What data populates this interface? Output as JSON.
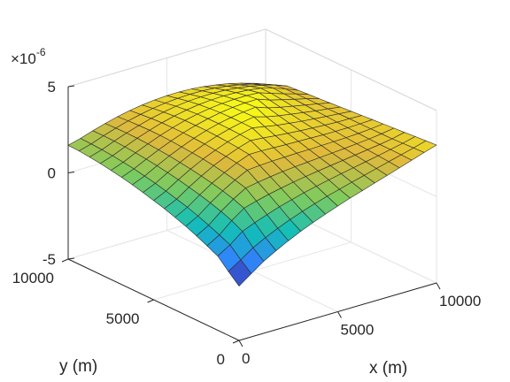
{
  "chart_data": {
    "type": "surface",
    "xlabel": "x (m)",
    "ylabel": "y (m)",
    "zlabel": "",
    "exponent_label": "×10",
    "exponent_power": "-6",
    "x_range": [
      0,
      10000
    ],
    "y_range": [
      0,
      10000
    ],
    "z_range": [
      -5e-06,
      5e-06
    ],
    "x_ticks": [
      "0",
      "5000",
      "10000"
    ],
    "y_ticks": [
      "0",
      "5000",
      "10000"
    ],
    "z_ticks": [
      "-5",
      "0",
      "5"
    ],
    "grid": true,
    "colormap": [
      "#3e26a8",
      "#2e87f7",
      "#13beb8",
      "#7fcb5e",
      "#e0b93c",
      "#f9fb15"
    ],
    "surface": {
      "x": [
        0,
        625,
        1250,
        1875,
        2500,
        3125,
        3750,
        4375,
        5000,
        5625,
        6250,
        6875,
        7500,
        8125,
        8750,
        9375,
        10000
      ],
      "y": [
        0,
        625,
        1250,
        1875,
        2500,
        3125,
        3750,
        4375,
        5000,
        5625,
        6250,
        6875,
        7500,
        8125,
        8750,
        9375,
        10000
      ],
      "z": [
        [
          -1.85,
          -1.33,
          -0.82,
          -0.42,
          -0.05,
          0.29,
          0.59,
          0.87,
          1.13,
          1.38,
          1.61,
          1.84,
          2.07,
          2.3,
          2.54,
          2.78,
          3.0
        ],
        [
          -1.29,
          -0.82,
          -0.33,
          0.05,
          0.38,
          0.68,
          0.94,
          1.18,
          1.4,
          1.6,
          1.8,
          1.99,
          2.18,
          2.37,
          2.56,
          2.75,
          2.95
        ],
        [
          -0.69,
          -0.25,
          0.32,
          0.62,
          0.88,
          1.12,
          1.33,
          1.52,
          1.69,
          1.85,
          2.0,
          2.14,
          2.28,
          2.42,
          2.57,
          2.72,
          2.9
        ],
        [
          -0.39,
          0.03,
          0.65,
          1.16,
          1.37,
          1.55,
          1.7,
          1.84,
          1.96,
          2.07,
          2.17,
          2.27,
          2.37,
          2.47,
          2.57,
          2.69,
          2.85
        ],
        [
          -0.11,
          0.3,
          0.89,
          1.4,
          1.83,
          1.96,
          2.07,
          2.16,
          2.23,
          2.29,
          2.35,
          2.4,
          2.46,
          2.52,
          2.59,
          2.68,
          2.8
        ],
        [
          0.15,
          0.54,
          1.09,
          1.58,
          2.0,
          2.36,
          2.43,
          2.47,
          2.49,
          2.51,
          2.52,
          2.54,
          2.56,
          2.58,
          2.62,
          2.68,
          2.75
        ],
        [
          0.37,
          0.75,
          1.26,
          1.73,
          2.13,
          2.48,
          2.77,
          2.77,
          2.75,
          2.72,
          2.7,
          2.68,
          2.66,
          2.65,
          2.65,
          2.67,
          2.7
        ],
        [
          0.58,
          0.93,
          1.41,
          1.85,
          2.24,
          2.57,
          2.85,
          3.08,
          3.02,
          2.94,
          2.87,
          2.81,
          2.76,
          2.72,
          2.68,
          2.67,
          2.65
        ],
        [
          0.76,
          1.1,
          1.55,
          1.96,
          2.33,
          2.64,
          2.91,
          3.13,
          3.3,
          3.17,
          3.04,
          2.95,
          2.86,
          2.79,
          2.72,
          2.66,
          2.6
        ],
        [
          0.93,
          1.25,
          1.67,
          2.05,
          2.4,
          2.7,
          2.95,
          3.16,
          3.32,
          3.44,
          3.23,
          3.09,
          2.97,
          2.86,
          2.75,
          2.65,
          2.55
        ],
        [
          1.08,
          1.38,
          1.77,
          2.13,
          2.45,
          2.74,
          2.98,
          3.17,
          3.32,
          3.43,
          3.5,
          3.25,
          3.08,
          2.93,
          2.79,
          2.65,
          2.5
        ],
        [
          1.22,
          1.5,
          1.86,
          2.19,
          2.49,
          2.76,
          2.98,
          3.16,
          3.3,
          3.4,
          3.45,
          3.46,
          3.2,
          3.01,
          2.83,
          2.65,
          2.45
        ],
        [
          1.33,
          1.59,
          1.93,
          2.24,
          2.52,
          2.76,
          2.97,
          3.13,
          3.25,
          3.33,
          3.37,
          3.37,
          3.33,
          3.08,
          2.86,
          2.64,
          2.4
        ],
        [
          1.43,
          1.67,
          1.98,
          2.27,
          2.53,
          2.75,
          2.93,
          3.08,
          3.18,
          3.24,
          3.27,
          3.25,
          3.19,
          3.09,
          2.89,
          2.63,
          2.35
        ],
        [
          1.51,
          1.73,
          2.02,
          2.28,
          2.51,
          2.71,
          2.87,
          3.0,
          3.08,
          3.12,
          3.13,
          3.1,
          3.02,
          2.91,
          2.76,
          2.57,
          2.3
        ],
        [
          1.57,
          1.77,
          2.03,
          2.27,
          2.48,
          2.65,
          2.79,
          2.89,
          2.95,
          2.98,
          2.97,
          2.92,
          2.83,
          2.7,
          2.53,
          2.32,
          2.05
        ],
        [
          1.6,
          1.79,
          2.03,
          2.24,
          2.43,
          2.58,
          2.69,
          2.77,
          2.81,
          2.82,
          2.79,
          2.72,
          2.61,
          2.47,
          2.29,
          2.07,
          1.8
        ]
      ]
    }
  }
}
